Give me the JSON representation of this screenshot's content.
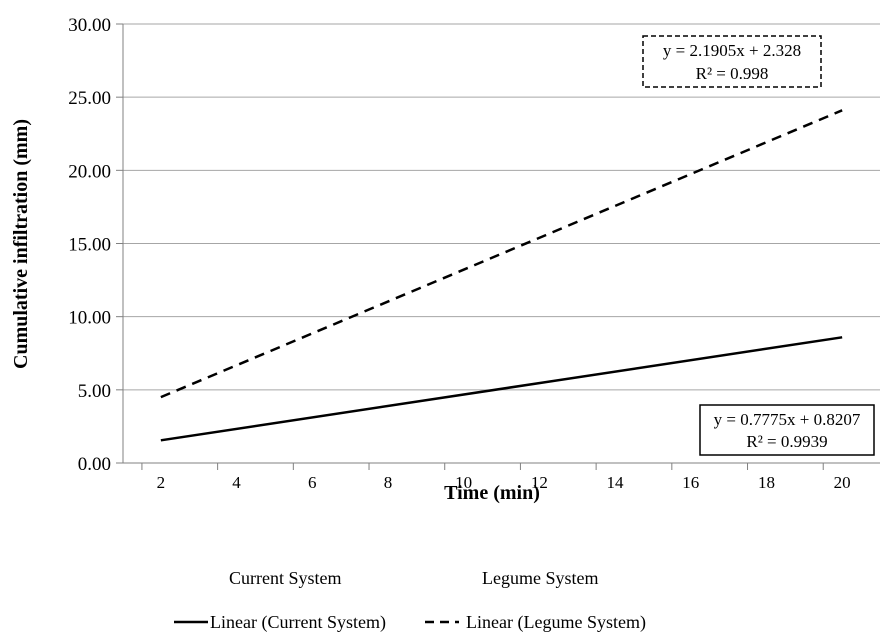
{
  "chart_data": {
    "type": "line",
    "xlabel": "Time (min)",
    "ylabel": "Cumulative infiltration (mm)",
    "x_ticks": [
      "2",
      "4",
      "6",
      "8",
      "10",
      "12",
      "14",
      "16",
      "18",
      "20"
    ],
    "y_ticks": [
      "0.00",
      "5.00",
      "10.00",
      "15.00",
      "20.00",
      "25.00",
      "30.00"
    ],
    "xlim": [
      1,
      21
    ],
    "ylim": [
      0,
      30
    ],
    "grid": "horizontal",
    "legend_position": "bottom",
    "series": [
      {
        "name": "Linear (Current System)",
        "style": "solid",
        "color": "#000000",
        "x": [
          2,
          20
        ],
        "y": [
          1.55,
          8.59
        ]
      },
      {
        "name": "Linear (Legume System)",
        "style": "dashed",
        "color": "#000000",
        "x": [
          2,
          20
        ],
        "y": [
          4.5,
          24.1
        ]
      }
    ],
    "legend": {
      "row1": [
        "Current System",
        "Legume System"
      ],
      "row2": [
        "Linear (Current System)",
        "Linear (Legume System)"
      ]
    },
    "annotations": [
      {
        "id": "legume",
        "border": "dashed",
        "line1": "y = 2.1905x + 2.328",
        "line2": "R² = 0.998"
      },
      {
        "id": "current",
        "border": "solid",
        "line1": "y = 0.7775x + 0.8207",
        "line2": "R² = 0.9939"
      }
    ]
  }
}
